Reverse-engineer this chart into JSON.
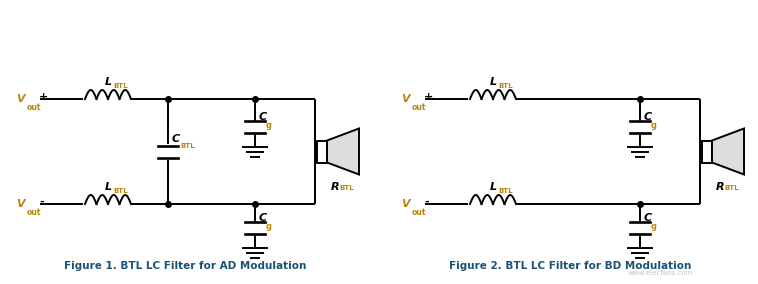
{
  "fig_width": 7.58,
  "fig_height": 2.84,
  "dpi": 100,
  "bg_color": "#ffffff",
  "line_color": "#000000",
  "label_color": "#1a5276",
  "label_color2": "#b8860b",
  "caption1": "Figure 1. BTL LC Filter for AD Modulation",
  "caption2": "Figure 2. BTL LC Filter for BD Modulation",
  "watermark": "www.elecfans.com",
  "caption_fontsize": 7.5,
  "caption_fontstyle": "bold"
}
